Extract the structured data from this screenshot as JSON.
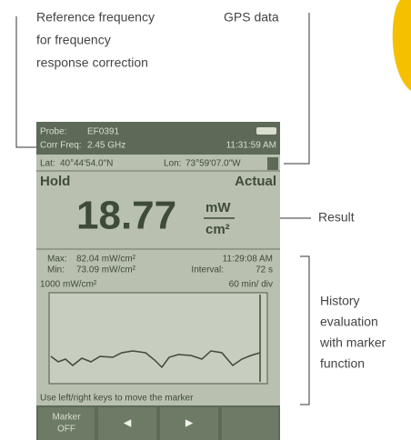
{
  "annotations": {
    "reference_frequency": [
      "Reference frequency",
      "for frequency",
      "response correction"
    ],
    "gps": "GPS data",
    "result": "Result",
    "history": [
      "History",
      "evaluation",
      "with marker",
      "function"
    ]
  },
  "screen": {
    "header": {
      "probe_label": "Probe:",
      "probe": "EF0391",
      "freq_label": "Corr Freq:",
      "freq": "2.45 GHz",
      "time": "11:31:59 AM"
    },
    "gps": {
      "lat_label": "Lat:",
      "lat": "40°44'54.0\"N",
      "lon_label": "Lon:",
      "lon": "73°59'07.0\"W"
    },
    "mode": "Hold",
    "display": "Actual",
    "reading": "18.77",
    "unit_top": "mW",
    "unit_bottom": "cm²",
    "history": {
      "max_label": "Max:",
      "max": "82.04 mW/cm²",
      "min_label": "Min:",
      "min": "73.09 mW/cm²",
      "time": "11:29:08 AM",
      "interval_label": "Interval:",
      "interval": "72 s",
      "scale": "1000 mW/cm²",
      "timebase": "60 min/ div"
    },
    "message": "Use left/right keys to move the marker",
    "softkeys": [
      [
        "Marker",
        "OFF"
      ],
      "◄",
      "►"
    ]
  }
}
